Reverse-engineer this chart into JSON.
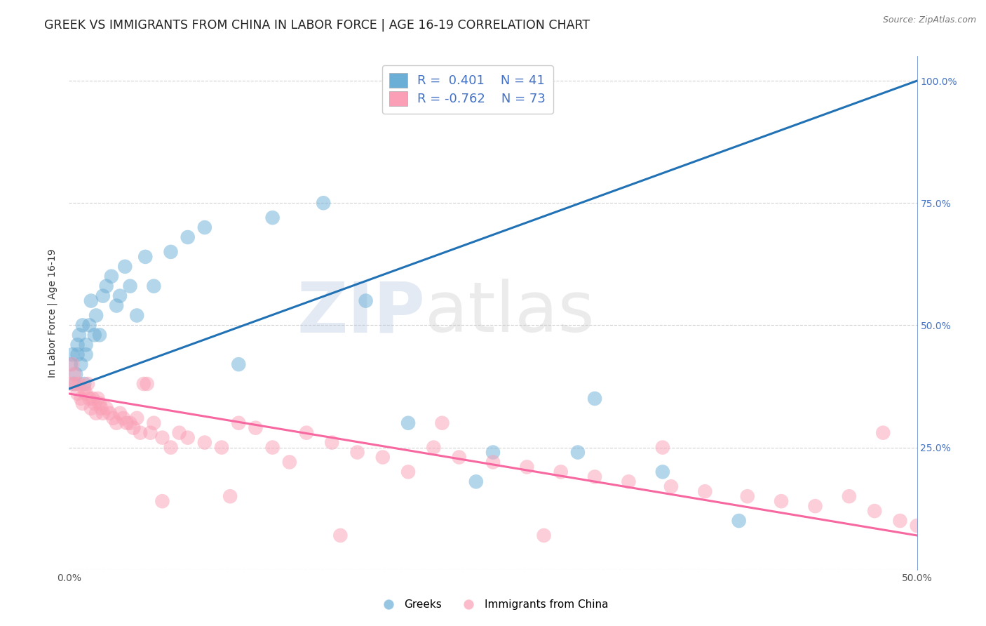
{
  "title": "GREEK VS IMMIGRANTS FROM CHINA IN LABOR FORCE | AGE 16-19 CORRELATION CHART",
  "source": "Source: ZipAtlas.com",
  "ylabel": "In Labor Force | Age 16-19",
  "xlim": [
    0.0,
    0.5
  ],
  "ylim": [
    0.0,
    1.05
  ],
  "blue_color": "#6baed6",
  "pink_color": "#fa9fb5",
  "blue_line_color": "#2171b5",
  "pink_line_color": "#f768a1",
  "legend_blue_r": "0.401",
  "legend_blue_n": "41",
  "legend_pink_r": "-0.762",
  "legend_pink_n": "73",
  "watermark_zip": "ZIP",
  "watermark_atlas": "atlas",
  "blue_scatter_x": [
    0.001,
    0.002,
    0.003,
    0.004,
    0.005,
    0.005,
    0.006,
    0.007,
    0.008,
    0.009,
    0.01,
    0.01,
    0.012,
    0.013,
    0.015,
    0.016,
    0.018,
    0.02,
    0.022,
    0.025,
    0.028,
    0.03,
    0.033,
    0.036,
    0.04,
    0.045,
    0.05,
    0.06,
    0.07,
    0.08,
    0.1,
    0.12,
    0.15,
    0.175,
    0.2,
    0.25,
    0.3,
    0.35,
    0.395,
    0.31,
    0.24
  ],
  "blue_scatter_y": [
    0.42,
    0.44,
    0.38,
    0.4,
    0.46,
    0.44,
    0.48,
    0.42,
    0.5,
    0.38,
    0.44,
    0.46,
    0.5,
    0.55,
    0.48,
    0.52,
    0.48,
    0.56,
    0.58,
    0.6,
    0.54,
    0.56,
    0.62,
    0.58,
    0.52,
    0.64,
    0.58,
    0.65,
    0.68,
    0.7,
    0.42,
    0.72,
    0.75,
    0.55,
    0.3,
    0.24,
    0.24,
    0.2,
    0.1,
    0.35,
    0.18
  ],
  "pink_scatter_x": [
    0.001,
    0.002,
    0.003,
    0.004,
    0.005,
    0.006,
    0.007,
    0.008,
    0.009,
    0.01,
    0.011,
    0.012,
    0.013,
    0.014,
    0.015,
    0.016,
    0.017,
    0.018,
    0.019,
    0.02,
    0.022,
    0.024,
    0.026,
    0.028,
    0.03,
    0.032,
    0.034,
    0.036,
    0.038,
    0.04,
    0.042,
    0.044,
    0.046,
    0.048,
    0.05,
    0.055,
    0.06,
    0.065,
    0.07,
    0.08,
    0.09,
    0.1,
    0.11,
    0.12,
    0.13,
    0.14,
    0.155,
    0.17,
    0.185,
    0.2,
    0.215,
    0.23,
    0.25,
    0.27,
    0.29,
    0.31,
    0.33,
    0.355,
    0.375,
    0.4,
    0.42,
    0.44,
    0.46,
    0.475,
    0.49,
    0.5,
    0.48,
    0.35,
    0.28,
    0.22,
    0.16,
    0.095,
    0.055
  ],
  "pink_scatter_y": [
    0.38,
    0.42,
    0.4,
    0.38,
    0.36,
    0.38,
    0.35,
    0.34,
    0.37,
    0.36,
    0.38,
    0.35,
    0.33,
    0.35,
    0.34,
    0.32,
    0.35,
    0.34,
    0.33,
    0.32,
    0.33,
    0.32,
    0.31,
    0.3,
    0.32,
    0.31,
    0.3,
    0.3,
    0.29,
    0.31,
    0.28,
    0.38,
    0.38,
    0.28,
    0.3,
    0.27,
    0.25,
    0.28,
    0.27,
    0.26,
    0.25,
    0.3,
    0.29,
    0.25,
    0.22,
    0.28,
    0.26,
    0.24,
    0.23,
    0.2,
    0.25,
    0.23,
    0.22,
    0.21,
    0.2,
    0.19,
    0.18,
    0.17,
    0.16,
    0.15,
    0.14,
    0.13,
    0.15,
    0.12,
    0.1,
    0.09,
    0.28,
    0.25,
    0.07,
    0.3,
    0.07,
    0.15,
    0.14
  ],
  "blue_trend_x": [
    0.0,
    0.5
  ],
  "blue_trend_y": [
    0.37,
    1.0
  ],
  "pink_trend_x": [
    0.0,
    0.5
  ],
  "pink_trend_y": [
    0.36,
    0.07
  ],
  "background_color": "#ffffff",
  "grid_color": "#cccccc",
  "title_fontsize": 12.5,
  "axis_fontsize": 10,
  "tick_fontsize": 10,
  "legend_fontsize": 13
}
